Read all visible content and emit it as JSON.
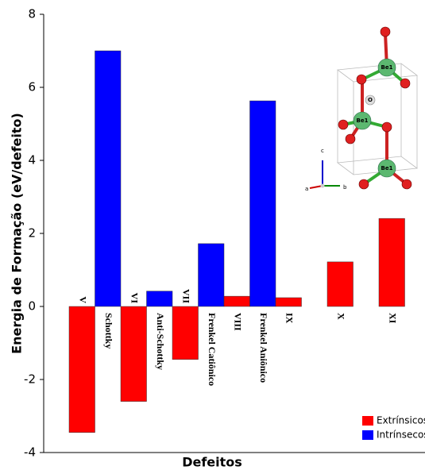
{
  "chart_data": {
    "type": "bar",
    "x_label": "Defeitos",
    "y_label": "Energia de Formação (eV/defeito)",
    "categories": [
      "V",
      "Schottky",
      "VI",
      "Anti-Schottky",
      "VII",
      "Frenkel Catiônico",
      "VIII",
      "Frenkel Aniônico",
      "IX",
      null,
      "X",
      null,
      "XI"
    ],
    "series": [
      {
        "name": "Extrínsicos",
        "color": "#ff0000",
        "values": [
          -3.45,
          null,
          -2.6,
          null,
          -1.45,
          null,
          0.28,
          null,
          0.24,
          null,
          1.22,
          null,
          2.41
        ]
      },
      {
        "name": "Intrínsecos",
        "color": "#0000ff",
        "values": [
          null,
          7.0,
          null,
          0.42,
          null,
          1.72,
          null,
          5.63,
          null,
          null,
          null,
          null,
          null
        ]
      }
    ],
    "ylim": [
      -4,
      8
    ],
    "yticks": [
      -4,
      -2,
      0,
      2,
      4,
      6,
      8
    ],
    "grid": false,
    "legend": "lower right"
  },
  "inset": {
    "atom_labels": [
      "Be1",
      "Be1",
      "Be1",
      "O"
    ],
    "axis_labels": [
      "a",
      "b",
      "c"
    ]
  }
}
